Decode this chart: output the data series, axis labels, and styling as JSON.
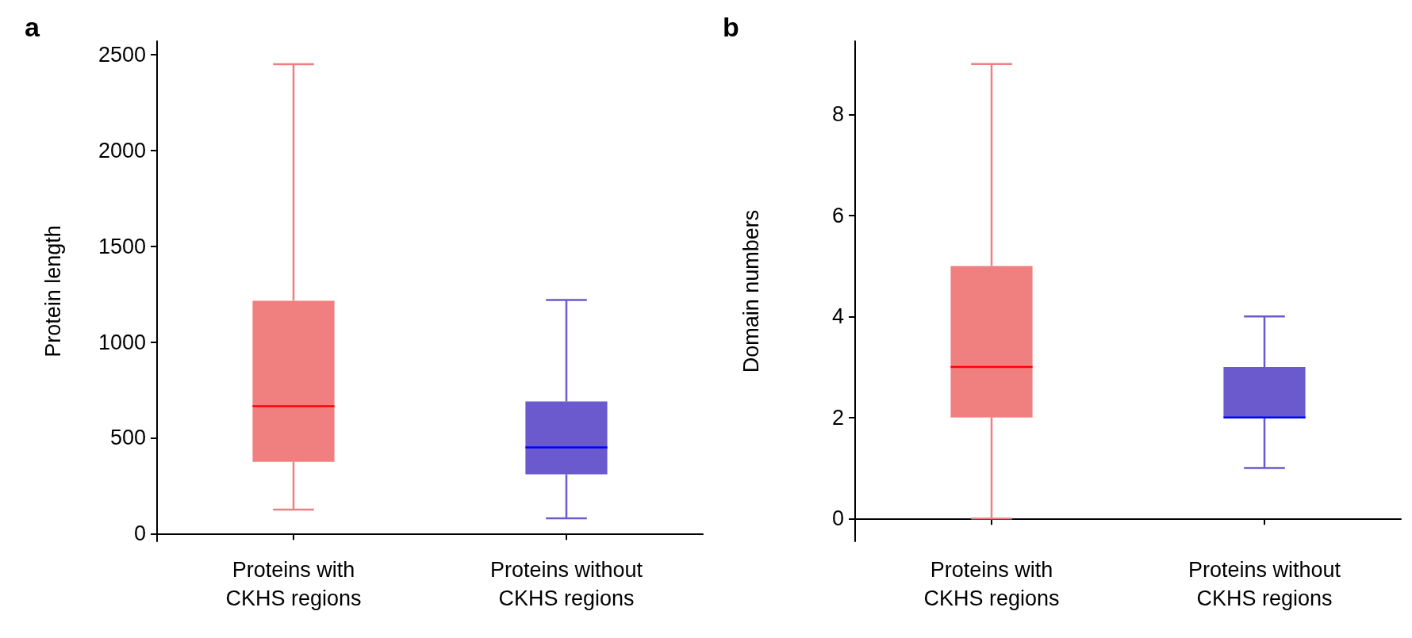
{
  "chart_data": [
    {
      "type": "box",
      "title": "a",
      "ylabel": "Protein length",
      "categories": [
        "Proteins with\nCKHS regions",
        "Proteins without\nCKHS regions"
      ],
      "colors": [
        "#f08080",
        "#6a5acd"
      ],
      "boxes": [
        {
          "low": 125,
          "q1": 375,
          "median": 665,
          "q3": 1215,
          "high": 2450
        },
        {
          "low": 80,
          "q1": 310,
          "median": 450,
          "q3": 690,
          "high": 1220
        }
      ],
      "ylim": [
        -40,
        2570
      ],
      "yticks": [
        0,
        500,
        1000,
        1500,
        2000,
        2500
      ],
      "grid": false
    },
    {
      "type": "box",
      "title": "b",
      "ylabel": "Domain numbers",
      "categories": [
        "Proteins with\nCKHS regions",
        "Proteins without\nCKHS regions"
      ],
      "colors": [
        "#f08080",
        "#6a5acd"
      ],
      "boxes": [
        {
          "low": 0,
          "q1": 2,
          "median": 3,
          "q3": 5,
          "high": 9
        },
        {
          "low": 1,
          "q1": 2,
          "median": 2,
          "q3": 3,
          "high": 4
        }
      ],
      "ylim": [
        -0.45,
        9.45
      ],
      "yticks": [
        0,
        2,
        4,
        6,
        8
      ],
      "grid": false
    }
  ]
}
